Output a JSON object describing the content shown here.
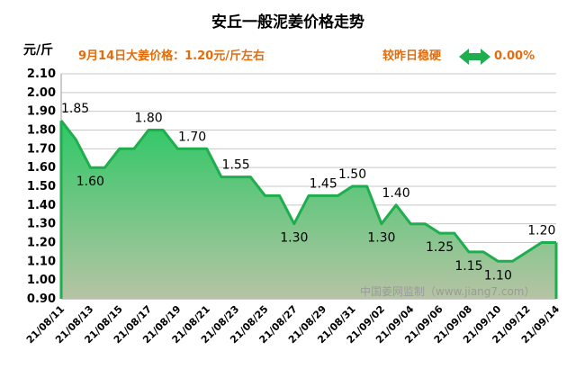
{
  "chart_data": {
    "type": "area",
    "title": "安丘一般泥姜价格走势",
    "ylabel": "元/斤",
    "price_note": "9月14日大姜价格：1.20元/斤左右",
    "compare_label": "较昨日稳硬",
    "change": "0.00%",
    "watermark": "中国姜网监制（www.jiang7.com）",
    "ylim": [
      0.9,
      2.1
    ],
    "ytick_values": [
      0.9,
      1.0,
      1.1,
      1.2,
      1.3,
      1.4,
      1.5,
      1.6,
      1.7,
      1.8,
      1.9,
      2.0,
      2.1
    ],
    "ytick_labels": [
      "0.90",
      "1.00",
      "1.10",
      "1.20",
      "1.30",
      "1.40",
      "1.50",
      "1.60",
      "1.70",
      "1.80",
      "1.90",
      "2.00",
      "2.10"
    ],
    "x": [
      "21/08/11",
      "21/08/12",
      "21/08/13",
      "21/08/14",
      "21/08/15",
      "21/08/16",
      "21/08/17",
      "21/08/18",
      "21/08/19",
      "21/08/20",
      "21/08/21",
      "21/08/22",
      "21/08/23",
      "21/08/24",
      "21/08/25",
      "21/08/26",
      "21/08/27",
      "21/08/28",
      "21/08/29",
      "21/08/30",
      "21/08/31",
      "21/09/01",
      "21/09/02",
      "21/09/03",
      "21/09/04",
      "21/09/05",
      "21/09/06",
      "21/09/07",
      "21/09/08",
      "21/09/09",
      "21/09/10",
      "21/09/11",
      "21/09/12",
      "21/09/13",
      "21/09/14"
    ],
    "values": [
      1.85,
      1.75,
      1.6,
      1.6,
      1.7,
      1.7,
      1.8,
      1.8,
      1.7,
      1.7,
      1.7,
      1.55,
      1.55,
      1.55,
      1.45,
      1.45,
      1.3,
      1.45,
      1.45,
      1.45,
      1.5,
      1.5,
      1.3,
      1.4,
      1.3,
      1.3,
      1.25,
      1.25,
      1.15,
      1.15,
      1.1,
      1.1,
      1.15,
      1.2,
      1.2
    ],
    "xtick_labels": [
      "21/08/11",
      "21/08/13",
      "21/08/15",
      "21/08/17",
      "21/08/19",
      "21/08/21",
      "21/08/23",
      "21/08/25",
      "21/08/27",
      "21/08/29",
      "21/08/31",
      "21/09/02",
      "21/09/04",
      "21/09/06",
      "21/09/08",
      "21/09/10",
      "21/09/12",
      "21/09/14"
    ],
    "data_labels": [
      {
        "index": 0,
        "text": "1.85"
      },
      {
        "index": 2,
        "text": "1.60"
      },
      {
        "index": 6,
        "text": "1.80"
      },
      {
        "index": 9,
        "text": "1.70"
      },
      {
        "index": 12,
        "text": "1.55"
      },
      {
        "index": 16,
        "text": "1.30"
      },
      {
        "index": 18,
        "text": "1.45"
      },
      {
        "index": 20,
        "text": "1.50"
      },
      {
        "index": 22,
        "text": "1.30"
      },
      {
        "index": 23,
        "text": "1.40"
      },
      {
        "index": 26,
        "text": "1.25"
      },
      {
        "index": 28,
        "text": "1.15"
      },
      {
        "index": 30,
        "text": "1.10"
      },
      {
        "index": 33,
        "text": "1.20"
      }
    ],
    "colors": {
      "line": "#1fae4e",
      "fill_top": "#2ec866",
      "fill_bottom": "#b6c4a4",
      "info": "#e46c0a",
      "arrow": "#1fae4e"
    }
  }
}
